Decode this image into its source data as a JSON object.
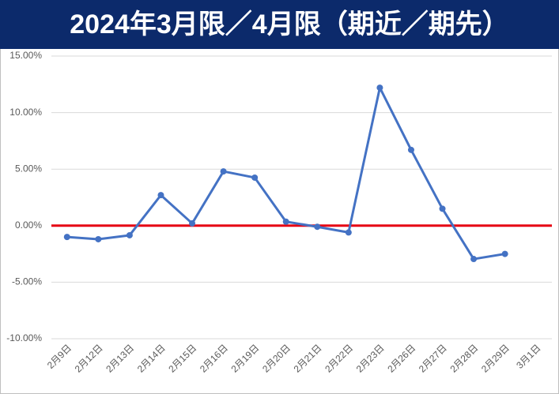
{
  "chart_data": {
    "type": "line",
    "title": "2024年3月限／4月限（期近／期先）",
    "categories": [
      "2月9日",
      "2月12日",
      "2月13日",
      "2月14日",
      "2月15日",
      "2月16日",
      "2月19日",
      "2月20日",
      "2月21日",
      "2月22日",
      "2月23日",
      "2月26日",
      "2月27日",
      "2月28日",
      "2月29日",
      "3月1日"
    ],
    "values": [
      -1.0,
      -1.2,
      -0.85,
      2.7,
      0.2,
      4.8,
      4.25,
      0.35,
      -0.1,
      -0.6,
      12.2,
      6.7,
      1.5,
      -2.95,
      -2.5,
      null
    ],
    "color": "#4472c4",
    "ylim": [
      -10,
      15
    ],
    "yticks": [
      {
        "value": -10,
        "label": "-10.00%"
      },
      {
        "value": -5,
        "label": "-5.00%"
      },
      {
        "value": 0,
        "label": "0.00%"
      },
      {
        "value": 5,
        "label": "5.00%"
      },
      {
        "value": 10,
        "label": "10.00%"
      },
      {
        "value": 15,
        "label": "15.00%"
      }
    ],
    "grid": true,
    "reference_line": {
      "value": 0,
      "color": "#e60012"
    }
  }
}
